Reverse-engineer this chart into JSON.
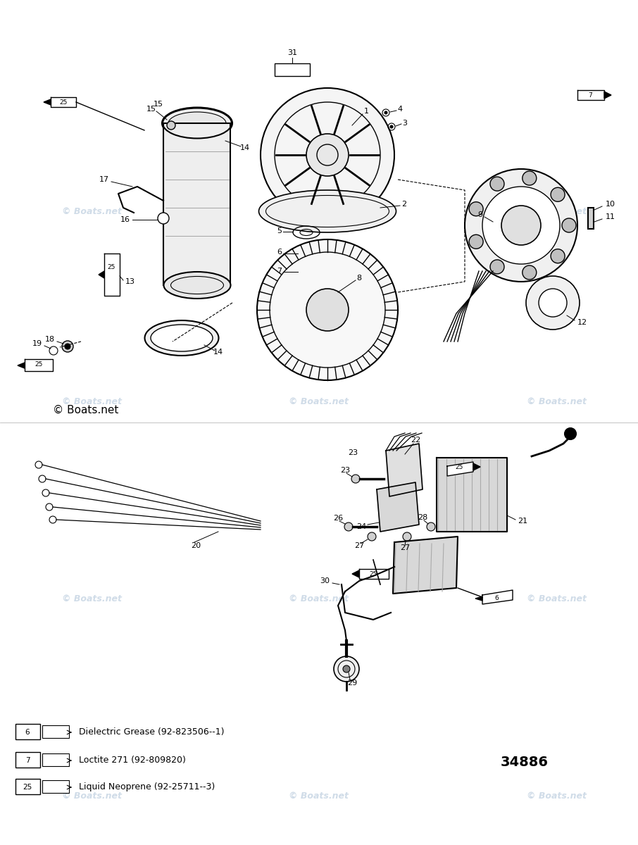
{
  "bg_color": "#ffffff",
  "watermark_color": "#d0dce8",
  "watermark_text": "© Boats.net",
  "part_number": "34886",
  "legend_items": [
    {
      "num": "6",
      "text": "Dielectric Grease (92-823506--1)"
    },
    {
      "num": "7",
      "text": "Loctite 271 (92-809820)"
    },
    {
      "num": "25",
      "text": "Liquid Neoprene (92-25711--3)"
    }
  ],
  "copyright_text": "© Boats.net",
  "text_color": "#000000"
}
